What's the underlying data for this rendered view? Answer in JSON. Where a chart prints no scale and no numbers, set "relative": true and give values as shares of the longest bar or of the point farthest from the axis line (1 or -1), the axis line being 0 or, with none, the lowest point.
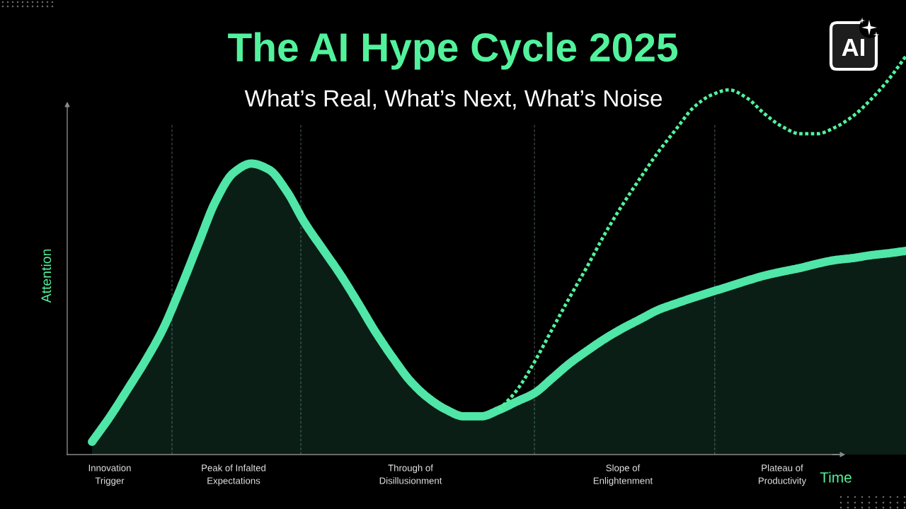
{
  "chart_data": {
    "type": "area",
    "title": "The AI Hype Cycle 2025",
    "subtitle": "What’s Real, What’s Next, What’s Noise",
    "xlabel": "Time",
    "ylabel": "Attention",
    "relative": true,
    "tick_labels": "x",
    "categories": [
      null,
      "Innovation\nTrigger",
      null,
      null,
      null,
      null,
      null,
      null,
      "Peak of Infalted\nExpectations",
      null,
      null,
      null,
      null,
      null,
      null,
      null,
      null,
      null,
      "Through of\nDisillusionment",
      null,
      null,
      null,
      null,
      null,
      null,
      null,
      null,
      null,
      null,
      null,
      "Slope of\nEnlightenment",
      null,
      null,
      null,
      null,
      null,
      null,
      null,
      null,
      "Plateau of\nProductivity",
      null,
      null,
      null,
      null,
      null,
      null,
      null
    ],
    "series": [
      {
        "color": "#4fe6a8",
        "values": [
          0.032,
          0.094,
          0.163,
          0.234,
          0.314,
          0.417,
          0.528,
          0.637,
          0.707,
          0.73,
          0.715,
          0.661,
          0.583,
          0.518,
          0.454,
          0.383,
          0.309,
          0.243,
          0.184,
          0.142,
          0.113,
          0.096,
          0.096,
          0.112,
          0.133,
          0.154,
          0.191,
          0.229,
          0.261,
          0.291,
          0.317,
          0.34,
          0.363,
          0.379,
          0.394,
          0.408,
          0.422,
          0.436,
          0.449,
          0.459,
          0.468,
          0.479,
          0.488,
          0.493,
          0.5,
          0.505,
          0.511
        ]
      },
      {
        "type": "line",
        "color": "#52f29c",
        "line_style": "dotted",
        "values": [
          null,
          null,
          null,
          null,
          null,
          null,
          null,
          null,
          null,
          null,
          null,
          null,
          null,
          null,
          null,
          null,
          null,
          null,
          null,
          null,
          null,
          null,
          null,
          0.112,
          0.161,
          0.232,
          0.314,
          0.395,
          0.473,
          0.555,
          0.628,
          0.695,
          0.759,
          0.816,
          0.871,
          0.902,
          0.915,
          0.895,
          0.855,
          0.823,
          0.805,
          0.805,
          0.821,
          0.849,
          0.89,
          0.94,
          1.0
        ]
      }
    ],
    "annotations": [
      "AI"
    ]
  }
}
